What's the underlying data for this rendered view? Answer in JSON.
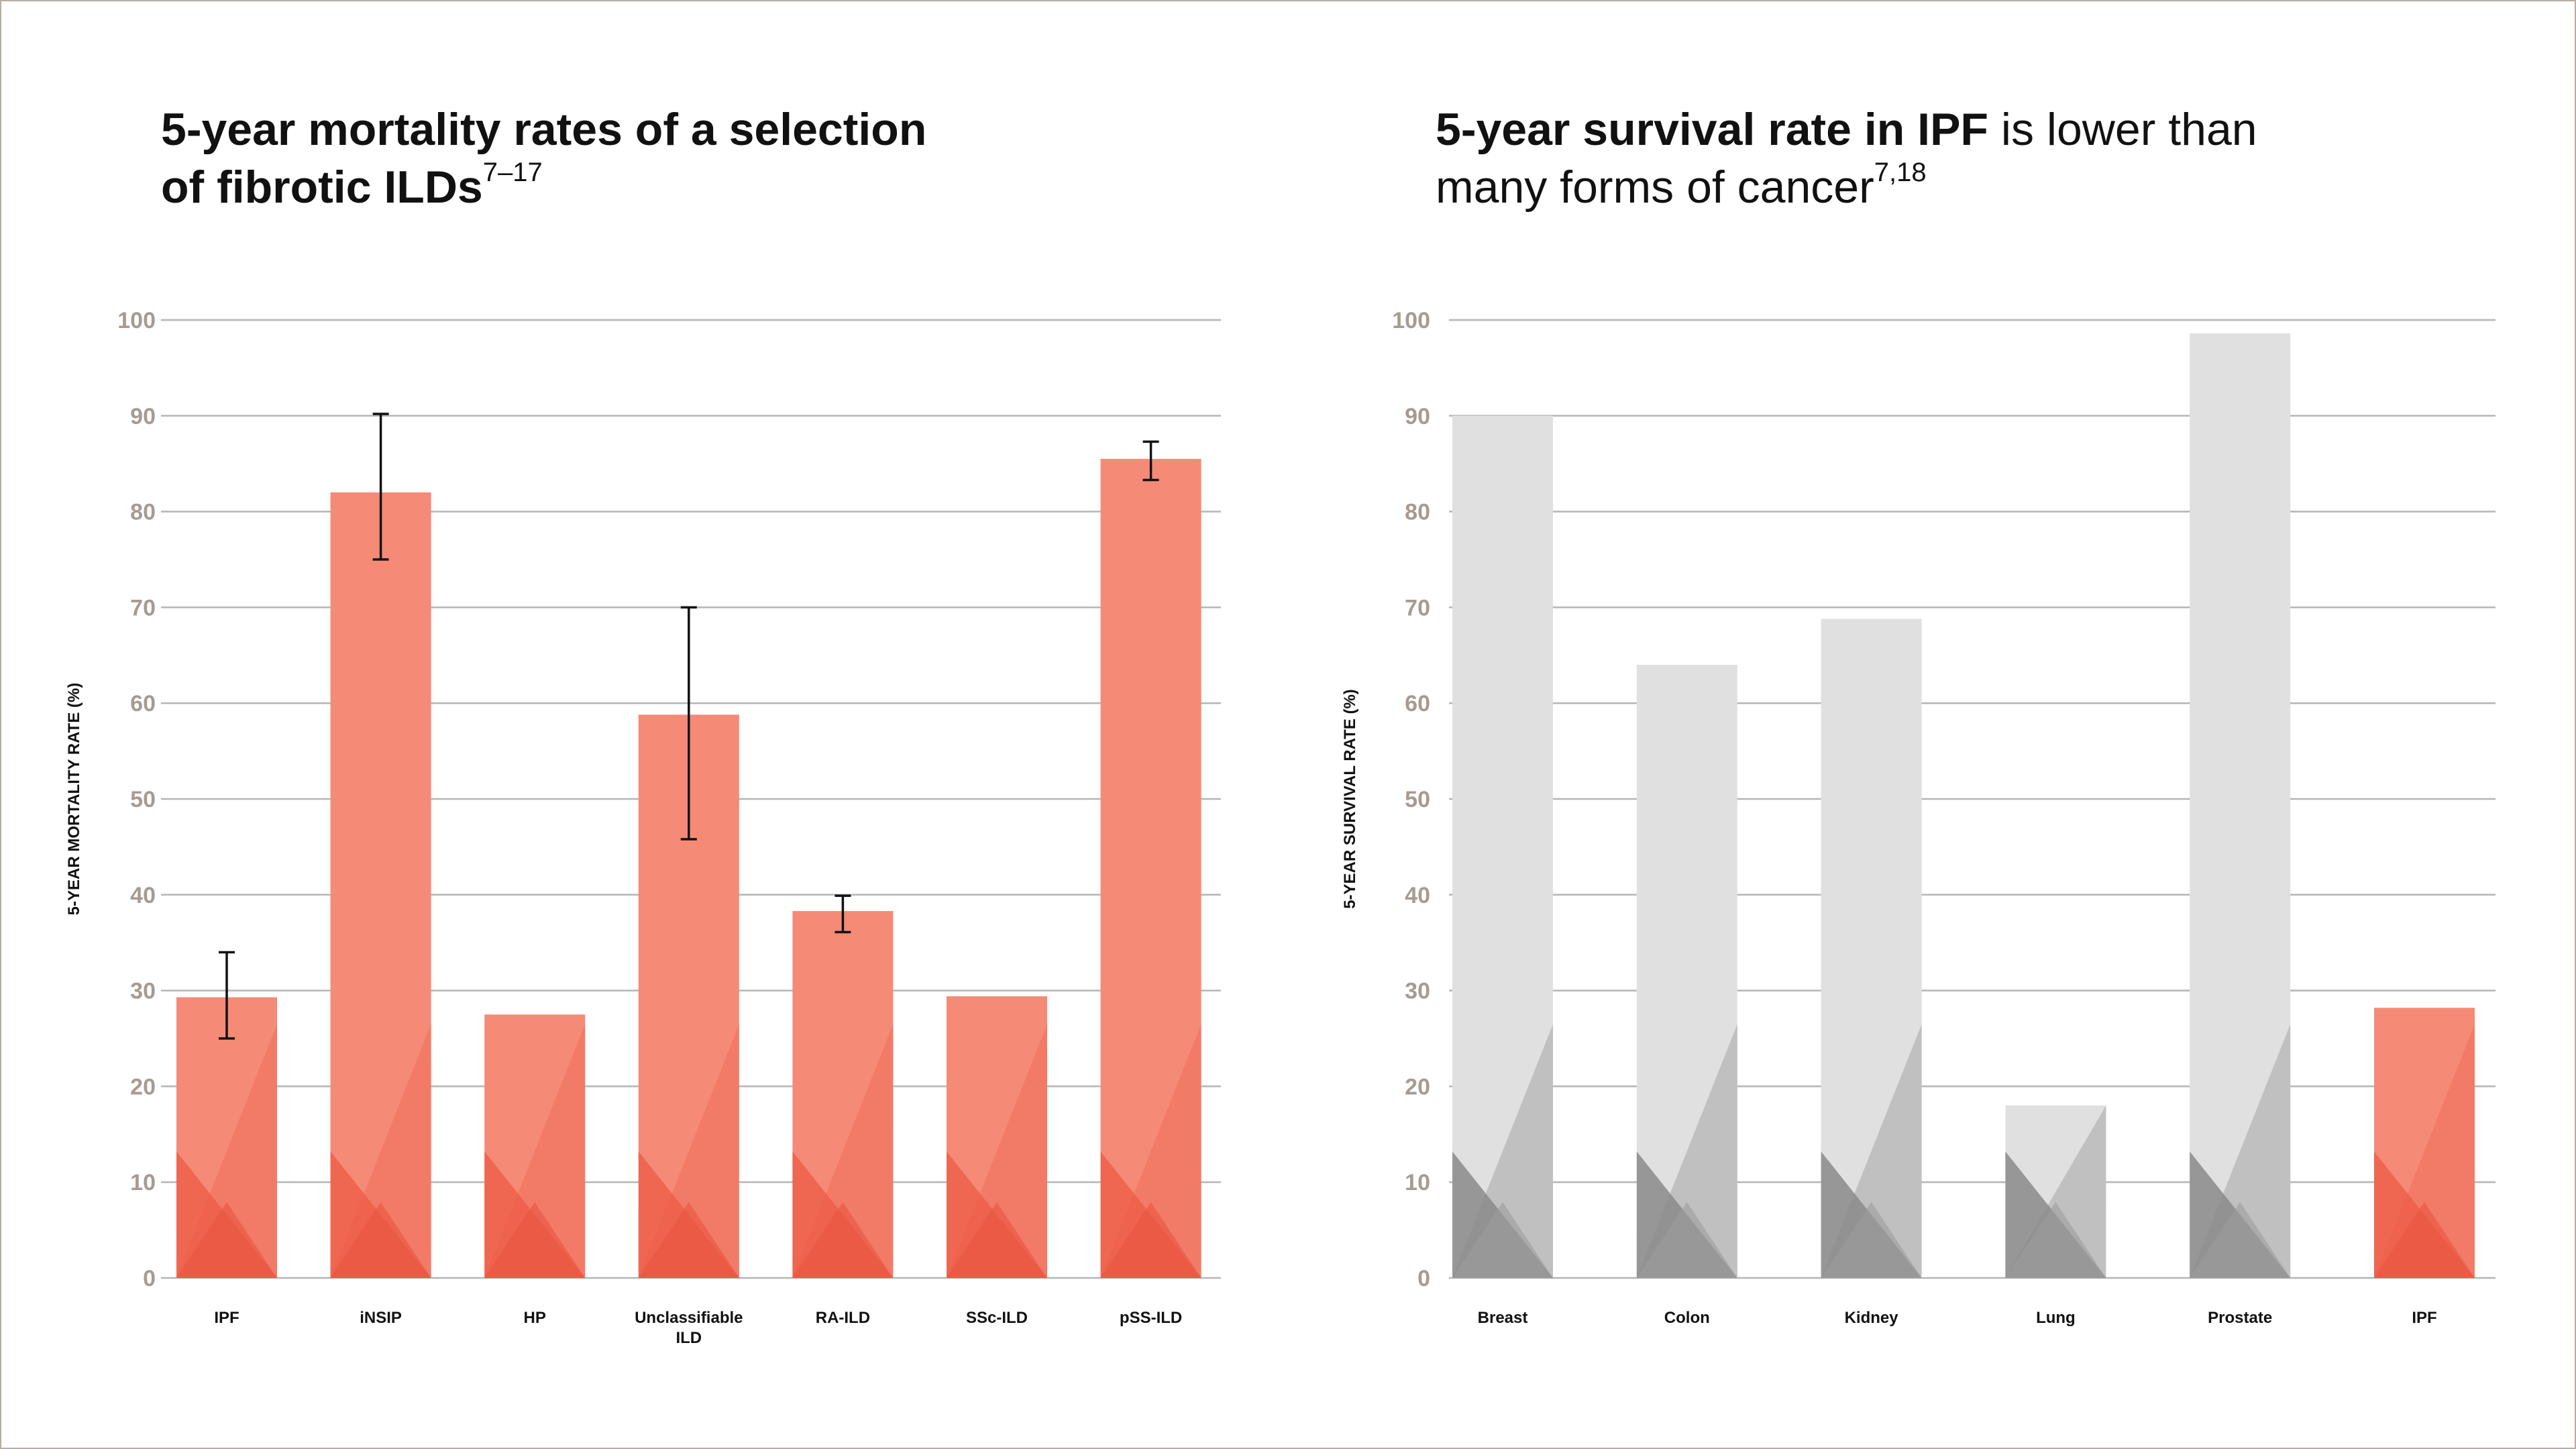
{
  "left_title": {
    "line1": "5-year mortality rates of a selection",
    "line2": "of fibrotic ILDs",
    "sup": "7–17"
  },
  "right_title": {
    "bold": "5-year survival rate in IPF",
    "rest_line1": " is lower than",
    "line2": "many forms of cancer",
    "sup": "7,18"
  },
  "colors": {
    "bar_red": "#f58a76",
    "bar_red_dark": "#ec5a45",
    "bar_gray": "#e0e0e0",
    "bar_gray_dark": "#8a8a8a",
    "grid": "#b5b5b5",
    "tick_text": "#a89a90",
    "frame": "#b8aca3"
  },
  "chart_data": [
    {
      "type": "bar",
      "ylabel": "5-YEAR MORTALITY RATE (%)",
      "ylim": [
        0,
        100
      ],
      "yticks": [
        "0",
        "10",
        "20",
        "30",
        "40",
        "50",
        "60",
        "70",
        "80",
        "90",
        "100"
      ],
      "categories": [
        "IPF",
        "iNSIP",
        "HP",
        "Unclassifiable ILD",
        "RA-ILD",
        "SSc-ILD",
        "pSS-ILD"
      ],
      "category_lines": [
        [
          "IPF"
        ],
        [
          "iNSIP"
        ],
        [
          "HP"
        ],
        [
          "Unclassifiable",
          "ILD"
        ],
        [
          "RA-ILD"
        ],
        [
          "SSc-ILD"
        ],
        [
          "pSS-ILD"
        ]
      ],
      "values": [
        29.3,
        82,
        27.5,
        58.8,
        38.3,
        29.4,
        85.5
      ],
      "error_low": [
        25,
        75,
        null,
        45.8,
        36.1,
        null,
        83.3
      ],
      "error_high": [
        34,
        90.2,
        null,
        70,
        39.9,
        null,
        87.3
      ],
      "bar_color": [
        "red",
        "red",
        "red",
        "red",
        "red",
        "red",
        "red"
      ],
      "grid": true
    },
    {
      "type": "bar",
      "ylabel": "5-YEAR SURVIVAL RATE (%)",
      "ylim": [
        0,
        100
      ],
      "yticks": [
        "0",
        "10",
        "20",
        "30",
        "40",
        "50",
        "60",
        "70",
        "80",
        "90",
        "100"
      ],
      "categories": [
        "Breast",
        "Colon",
        "Kidney",
        "Lung",
        "Prostate",
        "IPF"
      ],
      "category_lines": [
        [
          "Breast"
        ],
        [
          "Colon"
        ],
        [
          "Kidney"
        ],
        [
          "Lung"
        ],
        [
          "Prostate"
        ],
        [
          "IPF"
        ]
      ],
      "values": [
        90,
        64,
        68.8,
        18,
        98.6,
        28.2
      ],
      "bar_color": [
        "gray",
        "gray",
        "gray",
        "gray",
        "gray",
        "red"
      ],
      "grid": true
    }
  ]
}
